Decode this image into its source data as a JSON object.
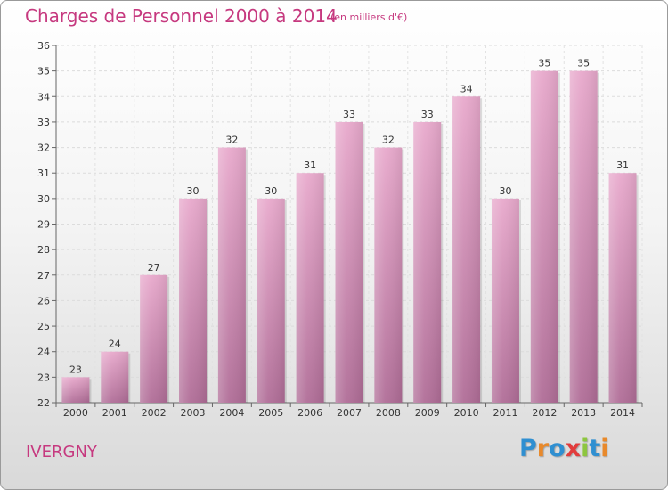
{
  "title": "Charges de Personnel 2000 à 2014",
  "subtitle": "(en milliers d'€)",
  "commune": "IVERGNY",
  "logo": {
    "letters": [
      "P",
      "r",
      "o",
      "x",
      "i",
      "t",
      "i"
    ],
    "colors": [
      "#2f8fd1",
      "#e8892b",
      "#2f8fd1",
      "#e23c3c",
      "#8dc63f",
      "#2f8fd1",
      "#e8892b"
    ]
  },
  "chart_data": {
    "type": "bar",
    "categories": [
      "2000",
      "2001",
      "2002",
      "2003",
      "2004",
      "2005",
      "2006",
      "2007",
      "2008",
      "2009",
      "2010",
      "2011",
      "2012",
      "2013",
      "2014"
    ],
    "values": [
      23,
      24,
      27,
      30,
      32,
      30,
      31,
      33,
      32,
      33,
      34,
      30,
      35,
      35,
      31
    ],
    "ylim": [
      22,
      36
    ],
    "yticks": [
      22,
      23,
      24,
      25,
      26,
      27,
      28,
      29,
      30,
      31,
      32,
      33,
      34,
      35,
      36
    ],
    "grid": true,
    "bar_color_top": "#e8a9cc",
    "bar_color_bottom": "#b06d97"
  }
}
